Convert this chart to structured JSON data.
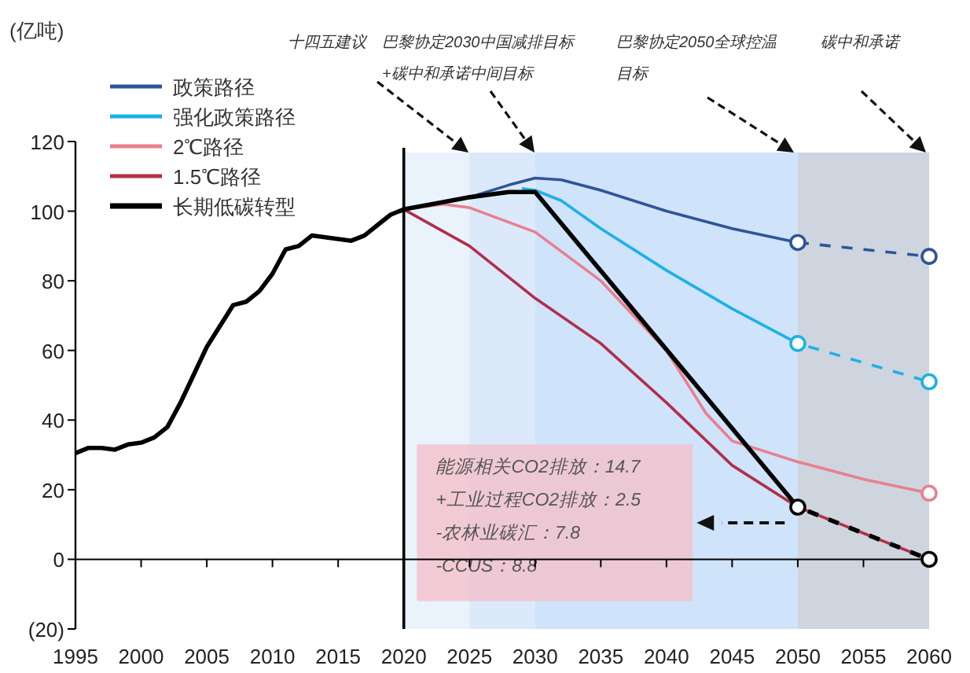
{
  "chart_data": {
    "type": "line",
    "ylabel": "(亿吨)",
    "xlim": [
      1995,
      2060
    ],
    "xticks": [
      1995,
      2000,
      2005,
      2010,
      2015,
      2020,
      2025,
      2030,
      2035,
      2040,
      2045,
      2050,
      2055,
      2060
    ],
    "ylim": [
      -20,
      120
    ],
    "yticks": [
      {
        "value": -20,
        "label": "(20)"
      },
      0,
      20,
      40,
      60,
      80,
      100,
      120
    ],
    "grid": false,
    "legend": "top left",
    "line_style": "solid",
    "series": [
      {
        "name": "政策路径",
        "color": "#2e5597",
        "x": [
          2020,
          2025,
          2028,
          2030,
          2032,
          2035,
          2040,
          2045,
          2050
        ],
        "values": [
          100.5,
          104,
          107.5,
          109.5,
          109,
          106,
          100,
          95,
          91
        ]
      },
      {
        "name": "强化政策路径",
        "color": "#1fb0e6",
        "x": [
          2029,
          2030,
          2032,
          2035,
          2040,
          2045,
          2050
        ],
        "values": [
          106.5,
          106,
          103,
          95,
          83,
          72,
          62
        ]
      },
      {
        "name": "2℃路径",
        "color": "#e8808f",
        "x": [
          2020,
          2023,
          2025,
          2030,
          2035,
          2040,
          2043,
          2045,
          2050,
          2055,
          2060
        ],
        "values": [
          100.5,
          102,
          101,
          94,
          80,
          60,
          42,
          34,
          28,
          23,
          19
        ]
      },
      {
        "name": "1.5℃路径",
        "color": "#b0304a",
        "x": [
          2020,
          2025,
          2030,
          2035,
          2040,
          2045,
          2050
        ],
        "values": [
          100.5,
          90,
          75,
          62,
          45,
          27,
          15
        ]
      },
      {
        "name": "长期低碳转型",
        "color": "#000000",
        "x": [
          1995,
          1996,
          1997,
          1998,
          1999,
          2000,
          2001,
          2002,
          2003,
          2004,
          2005,
          2006,
          2007,
          2008,
          2009,
          2010,
          2011,
          2012,
          2013,
          2014,
          2015,
          2016,
          2017,
          2018,
          2019,
          2020,
          2025,
          2028,
          2030,
          2050
        ],
        "values": [
          30.5,
          32,
          32,
          31.5,
          33,
          33.5,
          35,
          38,
          45,
          53,
          61,
          67,
          73,
          74,
          77,
          82,
          89,
          90,
          93,
          92.5,
          92,
          91.5,
          93,
          96,
          99,
          100.5,
          104,
          105.5,
          105.5,
          15
        ]
      },
      {
        "color": "#2e5597",
        "x": [
          2050,
          2060
        ],
        "values": [
          91,
          87
        ],
        "line_style": "dashed",
        "marker": "circle"
      },
      {
        "color": "#1fb0e6",
        "x": [
          2050,
          2060
        ],
        "values": [
          62,
          51
        ],
        "line_style": "dashed",
        "marker": "circle"
      },
      {
        "color": "#b0304a",
        "x": [
          2050,
          2060
        ],
        "values": [
          15,
          0
        ],
        "line_style": "dashed",
        "marker": "none"
      },
      {
        "color": "#000000",
        "x": [
          2050,
          2060
        ],
        "values": [
          15,
          0
        ],
        "line_style": "dashed",
        "marker": "circle"
      },
      {
        "type": "scatter",
        "color": "#e8808f",
        "x": [
          2060
        ],
        "values": [
          19
        ],
        "marker": "circle"
      }
    ],
    "ref_lines": [
      {
        "axis": "x",
        "value": 2020,
        "color": "#000000"
      }
    ],
    "bands": [
      {
        "axis": "x",
        "from": 2020,
        "to": 2025,
        "color": "#eaf2fc"
      },
      {
        "axis": "x",
        "from": 2025,
        "to": 2030,
        "color": "#dbe9fa"
      },
      {
        "axis": "x",
        "from": 2030,
        "to": 2050,
        "color": "#cfe3fa"
      },
      {
        "axis": "x",
        "from": 2050,
        "to": 2060,
        "color": "#cfd5de"
      }
    ],
    "annotations": [
      "十四五建议",
      "巴黎协定2030中国减排目标+碳中和承诺中间目标",
      "巴黎协定2050全球控温目标",
      "碳中和承诺",
      "能源相关CO2排放：14.7",
      "+工业过程CO2排放：2.5",
      "-农林业碳汇：7.8",
      "-CCUS：8.8"
    ]
  }
}
